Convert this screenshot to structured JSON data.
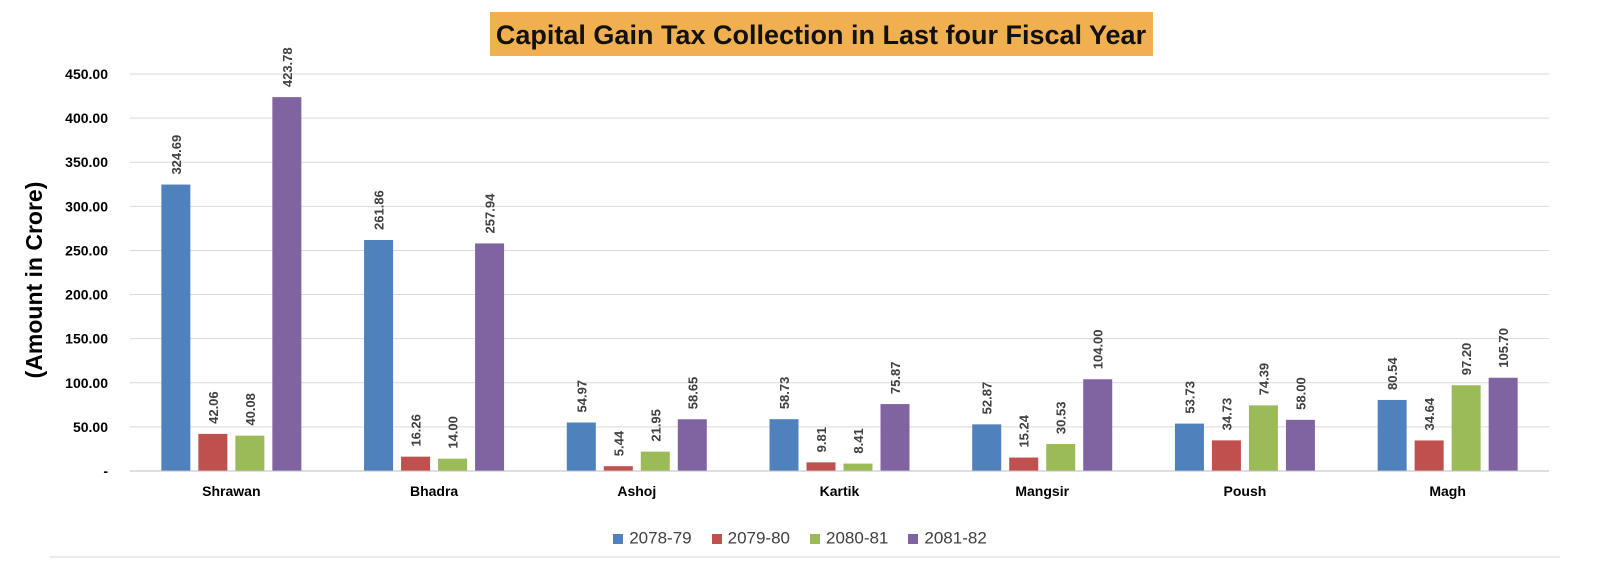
{
  "chart_data": {
    "type": "bar",
    "title": "Capital Gain Tax Collection in Last four Fiscal Year",
    "ylabel": "(Amount in Crore)",
    "xlabel": "",
    "ylim": [
      0,
      450
    ],
    "yticks": [
      0,
      50,
      100,
      150,
      200,
      250,
      300,
      350,
      400,
      450
    ],
    "ytick_labels": [
      "-",
      "50.00",
      "100.00",
      "150.00",
      "200.00",
      "250.00",
      "300.00",
      "350.00",
      "400.00",
      "450.00"
    ],
    "grid": "horizontal",
    "legend_position": "bottom",
    "categories": [
      "Shrawan",
      "Bhadra",
      "Ashoj",
      "Kartik",
      "Mangsir",
      "Poush",
      "Magh"
    ],
    "series": [
      {
        "name": "2078-79",
        "color": "#4F81BD",
        "values": [
          324.69,
          261.86,
          54.97,
          58.73,
          52.87,
          53.73,
          80.54
        ],
        "labels": [
          "324.69",
          "261.86",
          "54.97",
          "58.73",
          "52.87",
          "53.73",
          "80.54"
        ]
      },
      {
        "name": "2079-80",
        "color": "#C0504D",
        "values": [
          42.06,
          16.26,
          5.44,
          9.81,
          15.24,
          34.73,
          34.64
        ],
        "labels": [
          "42.06",
          "16.26",
          "5.44",
          "9.81",
          "15.24",
          "34.73",
          "34.64"
        ]
      },
      {
        "name": "2080-81",
        "color": "#9BBB59",
        "values": [
          40.08,
          14.0,
          21.95,
          8.41,
          30.53,
          74.39,
          97.2
        ],
        "labels": [
          "40.08",
          "14.00",
          "21.95",
          "8.41",
          "30.53",
          "74.39",
          "97.20"
        ]
      },
      {
        "name": "2081-82",
        "color": "#8064A2",
        "values": [
          423.78,
          257.94,
          58.65,
          75.87,
          104.0,
          58.0,
          105.7
        ],
        "labels": [
          "423.78",
          "257.94",
          "58.65",
          "75.87",
          "104.00",
          "58.00",
          "105.70"
        ]
      }
    ],
    "title_background": "#F0B050"
  }
}
